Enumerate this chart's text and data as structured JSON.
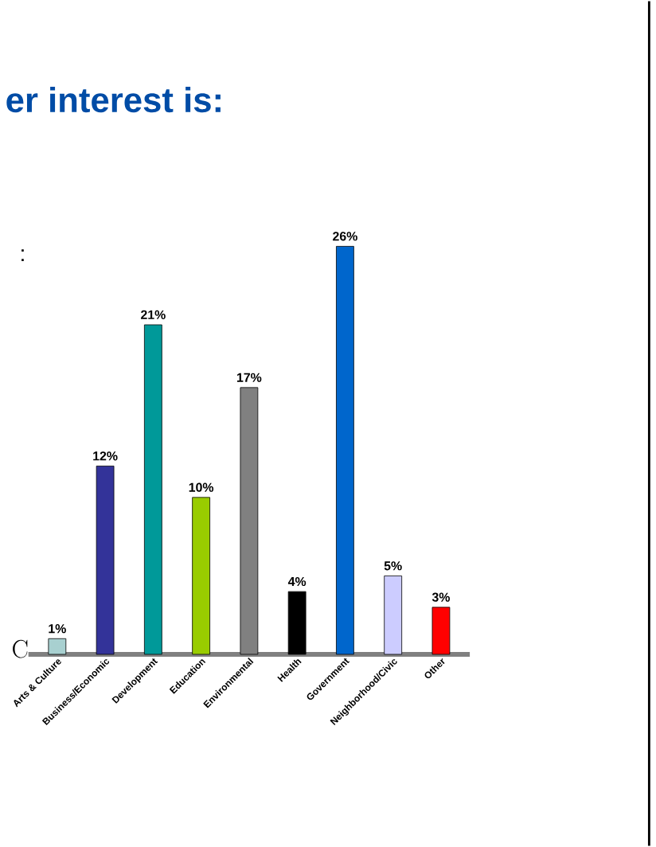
{
  "chart_data": {
    "type": "bar",
    "title": "er interest is:",
    "categories": [
      "Arts & Culture",
      "Business/Economic",
      "Development",
      "Education",
      "Environmental",
      "Health",
      "Government",
      "Neighborhood/Civic",
      "Other"
    ],
    "values": [
      1,
      12,
      21,
      10,
      17,
      4,
      26,
      5,
      3
    ],
    "value_labels": [
      "1%",
      "12%",
      "21%",
      "10%",
      "17%",
      "4%",
      "26%",
      "5%",
      "3%"
    ],
    "colors": [
      "#a8d0d0",
      "#333399",
      "#009999",
      "#99cc00",
      "#808080",
      "#000000",
      "#0066cc",
      "#ccccff",
      "#ff0000"
    ],
    "annotations": [
      ":",
      "C"
    ]
  }
}
